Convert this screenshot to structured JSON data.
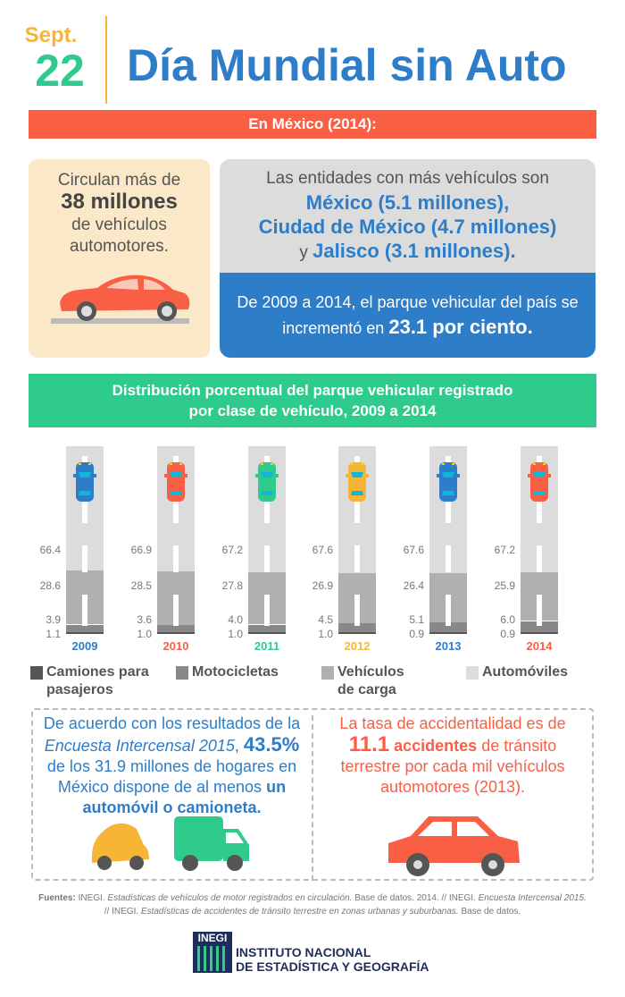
{
  "header": {
    "month": "Sept.",
    "day": "22",
    "title": "Día Mundial sin Auto"
  },
  "banner": "En México (2014):",
  "stat_box": {
    "line1": "Circulan más de",
    "highlight": "38 millones",
    "line2": "de vehículos automotores."
  },
  "entities_box": {
    "intro": "Las entidades con más vehículos son",
    "e1": "México (5.1 millones),",
    "e2": "Ciudad de México (4.7 millones)",
    "conj": "y",
    "e3": "Jalisco (3.1 millones)."
  },
  "growth_box": {
    "text": "De 2009 a 2014, el parque vehicular del país se incrementó en",
    "highlight": "23.1 por ciento."
  },
  "colors": {
    "red": "#f85f45",
    "blue": "#2d7dc8",
    "green": "#2ecb8c",
    "yellow": "#f7b538"
  },
  "chart_data": {
    "type": "bar",
    "stacked": true,
    "title": "Distribución porcentual del parque vehicular registrado por clase de vehículo, 2009 a 2014",
    "categories": [
      "2009",
      "2010",
      "2011",
      "2012",
      "2013",
      "2014"
    ],
    "category_colors": [
      "#2d7dc8",
      "#f85f45",
      "#2ecb8c",
      "#f7b538",
      "#2d7dc8",
      "#f85f45"
    ],
    "series": [
      {
        "name": "Camiones para pasajeros",
        "color": "#555555",
        "values": [
          1.1,
          1.0,
          1.0,
          1.0,
          0.9,
          0.9
        ]
      },
      {
        "name": "Motocicletas",
        "color": "#888888",
        "values": [
          3.9,
          3.6,
          4.0,
          4.5,
          5.1,
          6.0
        ]
      },
      {
        "name": "Vehículos de carga",
        "color": "#b0b0b0",
        "values": [
          28.6,
          28.5,
          27.8,
          26.9,
          26.4,
          25.9
        ]
      },
      {
        "name": "Automóviles",
        "color": "#dcdcdc",
        "values": [
          66.4,
          66.9,
          67.2,
          67.6,
          67.6,
          67.2
        ]
      }
    ],
    "ylim": [
      0,
      100
    ],
    "legend": "bottom"
  },
  "survey": {
    "l1": "De acuerdo con los resultados de la",
    "italic": "Encuesta Intercensal 2015",
    "pct": "43.5%",
    "l2": "de los 31.9 millones de hogares en México dispone de al menos",
    "bold": "un automóvil o camioneta."
  },
  "accidents": {
    "l1": "La tasa de accidentalidad es de",
    "num": "11.1",
    "bold": "accidentes",
    "l2": "de tránsito terrestre por cada mil vehículos automotores (2013)."
  },
  "sources": {
    "label": "Fuentes:",
    "s1": "INEGI.",
    "s1i": "Estadísticas de vehículos de motor registrados en circulación.",
    "s1b": "Base de datos. 2014. // INEGI.",
    "s2i": "Encuesta Intercensal 2015.",
    "s3": "// INEGI.",
    "s3i": "Estadísticas de accidentes de tránsito terrestre en zonas urbanas y suburbanas.",
    "s3b": "Base de datos."
  },
  "logo": {
    "acronym": "INEGI",
    "line1": "INSTITUTO NACIONAL",
    "line2": "DE ESTADÍSTICA Y GEOGRAFÍA"
  }
}
